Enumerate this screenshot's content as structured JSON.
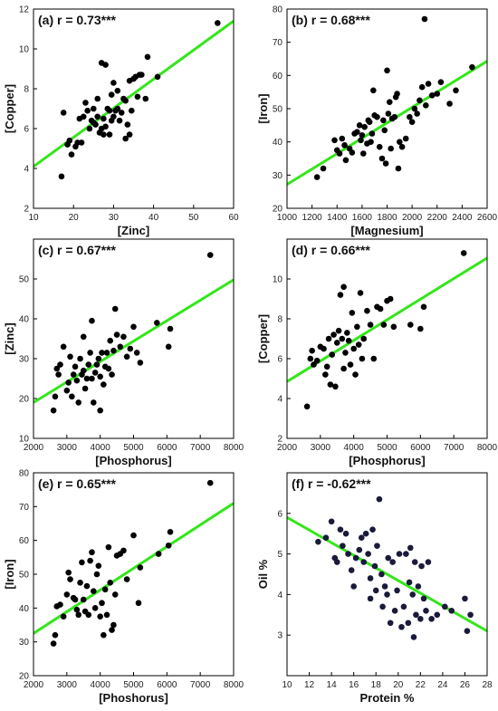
{
  "colors": {
    "fit_line": "#33e61a",
    "point": "#000000",
    "point_f": "#1a1a3a"
  },
  "chart_data": [
    {
      "type": "scatter",
      "title": "(a) r = 0.73***",
      "xlabel": "[Zinc]",
      "ylabel": "[Copper]",
      "xlim": [
        10,
        60
      ],
      "ylim": [
        2,
        12
      ],
      "xticks": [
        10,
        20,
        30,
        40,
        50,
        60
      ],
      "yticks": [
        2,
        4,
        6,
        8,
        10,
        12
      ],
      "fit": [
        [
          10,
          4.1
        ],
        [
          60,
          11.4
        ]
      ],
      "points": [
        [
          17,
          3.6
        ],
        [
          17.5,
          6.8
        ],
        [
          18.5,
          5.2
        ],
        [
          19,
          5.4
        ],
        [
          19.5,
          4.7
        ],
        [
          20.5,
          5.1
        ],
        [
          21,
          5.3
        ],
        [
          21.5,
          6.5
        ],
        [
          22,
          5.3
        ],
        [
          22.5,
          6.6
        ],
        [
          23,
          7.3
        ],
        [
          23.5,
          6.9
        ],
        [
          24,
          6.0
        ],
        [
          24.5,
          6.4
        ],
        [
          25,
          6.3
        ],
        [
          25,
          7.0
        ],
        [
          25.5,
          6.2
        ],
        [
          26,
          6.6
        ],
        [
          26,
          7.5
        ],
        [
          26.5,
          5.8
        ],
        [
          27,
          6.0
        ],
        [
          27,
          9.3
        ],
        [
          27.5,
          5.7
        ],
        [
          27.5,
          6.5
        ],
        [
          28,
          6.1
        ],
        [
          28,
          9.2
        ],
        [
          28.5,
          7.0
        ],
        [
          29,
          5.7
        ],
        [
          29,
          6.9
        ],
        [
          29.5,
          6.4
        ],
        [
          29.5,
          7.7
        ],
        [
          30,
          6.6
        ],
        [
          30,
          8.3
        ],
        [
          30.5,
          6.9
        ],
        [
          31,
          7.0
        ],
        [
          31,
          7.9
        ],
        [
          31.5,
          6.4
        ],
        [
          32,
          6.8
        ],
        [
          32.5,
          7.5
        ],
        [
          33,
          5.5
        ],
        [
          33,
          7.4
        ],
        [
          33.5,
          6.2
        ],
        [
          34,
          5.7
        ],
        [
          34,
          8.4
        ],
        [
          34.5,
          6.9
        ],
        [
          35,
          8.5
        ],
        [
          35.5,
          8.6
        ],
        [
          36,
          7.6
        ],
        [
          36.5,
          8.7
        ],
        [
          37,
          8.7
        ],
        [
          38,
          7.5
        ],
        [
          38.5,
          9.6
        ],
        [
          41,
          8.6
        ],
        [
          56,
          11.3
        ]
      ]
    },
    {
      "type": "scatter",
      "title": "(b) r = 0.68***",
      "xlabel": "[Magnesium]",
      "ylabel": "[Iron]",
      "xlim": [
        1000,
        2600
      ],
      "ylim": [
        20,
        80
      ],
      "xticks": [
        1000,
        1200,
        1400,
        1600,
        1800,
        2000,
        2200,
        2400,
        2600
      ],
      "yticks": [
        20,
        30,
        40,
        50,
        60,
        70,
        80
      ],
      "fit": [
        [
          1000,
          27.2
        ],
        [
          2600,
          64.3
        ]
      ],
      "points": [
        [
          1240,
          29.4
        ],
        [
          1290,
          32.0
        ],
        [
          1380,
          40.5
        ],
        [
          1400,
          37.5
        ],
        [
          1420,
          36.5
        ],
        [
          1440,
          41.0
        ],
        [
          1460,
          39.0
        ],
        [
          1470,
          34.5
        ],
        [
          1500,
          38.0
        ],
        [
          1520,
          36.8
        ],
        [
          1540,
          42.5
        ],
        [
          1560,
          43.0
        ],
        [
          1580,
          45.0
        ],
        [
          1590,
          40.5
        ],
        [
          1600,
          42.0
        ],
        [
          1610,
          36.5
        ],
        [
          1620,
          44.5
        ],
        [
          1640,
          39.5
        ],
        [
          1650,
          46.5
        ],
        [
          1660,
          46.0
        ],
        [
          1670,
          40.0
        ],
        [
          1680,
          42.5
        ],
        [
          1690,
          55.5
        ],
        [
          1700,
          48.0
        ],
        [
          1720,
          47.5
        ],
        [
          1740,
          38.5
        ],
        [
          1760,
          35.0
        ],
        [
          1770,
          46.5
        ],
        [
          1780,
          43.5
        ],
        [
          1790,
          33.5
        ],
        [
          1800,
          61.5
        ],
        [
          1810,
          48.5
        ],
        [
          1820,
          52.0
        ],
        [
          1830,
          38.0
        ],
        [
          1840,
          47.0
        ],
        [
          1860,
          47.5
        ],
        [
          1870,
          53.5
        ],
        [
          1880,
          54.5
        ],
        [
          1890,
          32.0
        ],
        [
          1900,
          40.0
        ],
        [
          1920,
          38.5
        ],
        [
          1950,
          41.0
        ],
        [
          1980,
          47.5
        ],
        [
          2000,
          46.0
        ],
        [
          2020,
          50.0
        ],
        [
          2040,
          48.5
        ],
        [
          2060,
          52.5
        ],
        [
          2080,
          56.5
        ],
        [
          2100,
          77.0
        ],
        [
          2110,
          51.0
        ],
        [
          2130,
          57.5
        ],
        [
          2160,
          54.0
        ],
        [
          2200,
          54.5
        ],
        [
          2230,
          58.0
        ],
        [
          2300,
          51.5
        ],
        [
          2350,
          55.5
        ],
        [
          2480,
          62.5
        ]
      ]
    },
    {
      "type": "scatter",
      "title": "(c) r = 0.67***",
      "xlabel": "[Phosphorus]",
      "ylabel": "[Zinc]",
      "xlim": [
        2000,
        8000
      ],
      "ylim": [
        10,
        60
      ],
      "xticks": [
        2000,
        3000,
        4000,
        5000,
        6000,
        7000,
        8000
      ],
      "yticks": [
        10,
        20,
        30,
        40,
        50
      ],
      "fit": [
        [
          2000,
          19.0
        ],
        [
          8000,
          49.8
        ]
      ],
      "points": [
        [
          2600,
          17.0
        ],
        [
          2650,
          20.5
        ],
        [
          2700,
          27.5
        ],
        [
          2750,
          26.0
        ],
        [
          2800,
          28.5
        ],
        [
          2900,
          33.0
        ],
        [
          3000,
          22.0
        ],
        [
          3050,
          24.0
        ],
        [
          3100,
          30.5
        ],
        [
          3150,
          20.5
        ],
        [
          3200,
          26.0
        ],
        [
          3250,
          28.0
        ],
        [
          3300,
          24.5
        ],
        [
          3350,
          19.0
        ],
        [
          3400,
          30.0
        ],
        [
          3450,
          26.0
        ],
        [
          3500,
          35.5
        ],
        [
          3500,
          27.0
        ],
        [
          3550,
          22.5
        ],
        [
          3600,
          25.0
        ],
        [
          3650,
          28.5
        ],
        [
          3700,
          31.5
        ],
        [
          3750,
          39.5
        ],
        [
          3750,
          25.0
        ],
        [
          3800,
          19.0
        ],
        [
          3850,
          26.5
        ],
        [
          3900,
          28.5
        ],
        [
          3950,
          30.0
        ],
        [
          4000,
          17.0
        ],
        [
          4000,
          25.5
        ],
        [
          4050,
          31.5
        ],
        [
          4100,
          23.5
        ],
        [
          4150,
          28.0
        ],
        [
          4200,
          31.5
        ],
        [
          4250,
          27.5
        ],
        [
          4300,
          34.5
        ],
        [
          4350,
          26.0
        ],
        [
          4400,
          32.0
        ],
        [
          4450,
          42.5
        ],
        [
          4500,
          36.0
        ],
        [
          4600,
          33.0
        ],
        [
          4700,
          35.5
        ],
        [
          4800,
          30.5
        ],
        [
          4900,
          32.5
        ],
        [
          5000,
          38.0
        ],
        [
          5100,
          31.5
        ],
        [
          5200,
          29.0
        ],
        [
          5700,
          39.0
        ],
        [
          6050,
          33.0
        ],
        [
          6100,
          37.5
        ],
        [
          7300,
          56.0
        ]
      ]
    },
    {
      "type": "scatter",
      "title": "(d) r = 0.66***",
      "xlabel": "[Phosphorus]",
      "ylabel": "[Copper]",
      "xlim": [
        2000,
        8000
      ],
      "ylim": [
        2,
        12
      ],
      "xticks": [
        2000,
        3000,
        4000,
        5000,
        6000,
        7000,
        8000
      ],
      "yticks": [
        2,
        4,
        6,
        8,
        10
      ],
      "fit": [
        [
          2000,
          4.85
        ],
        [
          8000,
          11.05
        ]
      ],
      "points": [
        [
          2600,
          3.6
        ],
        [
          2700,
          6.0
        ],
        [
          2750,
          6.4
        ],
        [
          2800,
          5.7
        ],
        [
          2900,
          5.9
        ],
        [
          3000,
          6.6
        ],
        [
          3100,
          6.5
        ],
        [
          3150,
          5.2
        ],
        [
          3200,
          5.6
        ],
        [
          3250,
          7.0
        ],
        [
          3300,
          4.7
        ],
        [
          3350,
          6.2
        ],
        [
          3400,
          7.2
        ],
        [
          3450,
          4.6
        ],
        [
          3500,
          6.8
        ],
        [
          3550,
          7.4
        ],
        [
          3600,
          9.2
        ],
        [
          3650,
          7.0
        ],
        [
          3700,
          9.6
        ],
        [
          3700,
          5.5
        ],
        [
          3750,
          6.3
        ],
        [
          3800,
          7.3
        ],
        [
          3850,
          6.9
        ],
        [
          3900,
          5.7
        ],
        [
          3950,
          8.3
        ],
        [
          4000,
          6.5
        ],
        [
          4050,
          5.2
        ],
        [
          4100,
          7.6
        ],
        [
          4150,
          6.7
        ],
        [
          4200,
          9.3
        ],
        [
          4250,
          6.0
        ],
        [
          4300,
          7.0
        ],
        [
          4400,
          8.4
        ],
        [
          4500,
          7.7
        ],
        [
          4600,
          6.0
        ],
        [
          4700,
          8.6
        ],
        [
          4800,
          8.5
        ],
        [
          4900,
          7.7
        ],
        [
          5000,
          8.9
        ],
        [
          5100,
          9.0
        ],
        [
          5200,
          7.6
        ],
        [
          5700,
          7.7
        ],
        [
          6000,
          7.5
        ],
        [
          6100,
          8.6
        ],
        [
          7300,
          11.3
        ]
      ]
    },
    {
      "type": "scatter",
      "title": "(e) r = 0.65***",
      "xlabel": "[Phoshorus]",
      "ylabel": "[Iron]",
      "xlim": [
        2000,
        8000
      ],
      "ylim": [
        20,
        80
      ],
      "xticks": [
        2000,
        3000,
        4000,
        5000,
        6000,
        7000,
        8000
      ],
      "yticks": [
        20,
        30,
        40,
        50,
        60,
        70,
        80
      ],
      "fit": [
        [
          2000,
          32.5
        ],
        [
          8000,
          71.0
        ]
      ],
      "points": [
        [
          2600,
          29.5
        ],
        [
          2650,
          32.0
        ],
        [
          2700,
          40.5
        ],
        [
          2800,
          41.0
        ],
        [
          2900,
          37.5
        ],
        [
          3000,
          44.0
        ],
        [
          3050,
          50.5
        ],
        [
          3100,
          48.5
        ],
        [
          3200,
          43.0
        ],
        [
          3250,
          42.5
        ],
        [
          3300,
          39.5
        ],
        [
          3350,
          38.0
        ],
        [
          3400,
          47.5
        ],
        [
          3450,
          53.5
        ],
        [
          3500,
          42.5
        ],
        [
          3550,
          39.0
        ],
        [
          3600,
          46.5
        ],
        [
          3650,
          38.0
        ],
        [
          3700,
          54.0
        ],
        [
          3750,
          56.5
        ],
        [
          3800,
          45.0
        ],
        [
          3850,
          40.0
        ],
        [
          3900,
          50.0
        ],
        [
          3950,
          52.5
        ],
        [
          4000,
          37.5
        ],
        [
          4050,
          41.5
        ],
        [
          4100,
          32.0
        ],
        [
          4150,
          45.5
        ],
        [
          4200,
          38.0
        ],
        [
          4250,
          58.0
        ],
        [
          4300,
          47.5
        ],
        [
          4350,
          33.5
        ],
        [
          4400,
          35.0
        ],
        [
          4450,
          44.0
        ],
        [
          4500,
          55.5
        ],
        [
          4600,
          56.0
        ],
        [
          4700,
          57.0
        ],
        [
          4800,
          48.5
        ],
        [
          5000,
          61.5
        ],
        [
          5150,
          41.5
        ],
        [
          5200,
          52.0
        ],
        [
          5750,
          56.0
        ],
        [
          6050,
          58.5
        ],
        [
          6100,
          62.5
        ],
        [
          7300,
          77.0
        ]
      ]
    },
    {
      "type": "scatter",
      "title": "(f) r = -0.62***",
      "xlabel": "Protein %",
      "ylabel": "Oil %",
      "xlim": [
        10,
        28
      ],
      "ylim": [
        2,
        7
      ],
      "xticks": [
        10,
        12,
        14,
        16,
        18,
        20,
        22,
        24,
        26,
        28
      ],
      "yticks": [
        3,
        4,
        5,
        6
      ],
      "fit": [
        [
          10,
          5.9
        ],
        [
          28,
          3.1
        ]
      ],
      "points": [
        [
          12.8,
          5.3
        ],
        [
          13.5,
          5.4
        ],
        [
          14.0,
          5.8
        ],
        [
          14.3,
          4.9
        ],
        [
          14.5,
          4.8
        ],
        [
          14.8,
          5.6
        ],
        [
          15.0,
          5.2
        ],
        [
          15.3,
          5.5
        ],
        [
          15.5,
          5.0
        ],
        [
          15.8,
          4.6
        ],
        [
          16.0,
          4.2
        ],
        [
          16.2,
          4.9
        ],
        [
          16.5,
          5.1
        ],
        [
          16.7,
          5.4
        ],
        [
          16.9,
          4.8
        ],
        [
          17.1,
          5.5
        ],
        [
          17.3,
          5.0
        ],
        [
          17.5,
          3.9
        ],
        [
          17.5,
          4.4
        ],
        [
          17.7,
          5.6
        ],
        [
          17.9,
          4.7
        ],
        [
          18.0,
          4.1
        ],
        [
          18.1,
          5.2
        ],
        [
          18.3,
          6.35
        ],
        [
          18.5,
          4.5
        ],
        [
          18.6,
          3.7
        ],
        [
          18.8,
          4.2
        ],
        [
          19.0,
          4.0
        ],
        [
          19.1,
          4.9
        ],
        [
          19.3,
          3.3
        ],
        [
          19.5,
          4.8
        ],
        [
          19.7,
          3.6
        ],
        [
          19.9,
          4.1
        ],
        [
          20.1,
          5.0
        ],
        [
          20.3,
          3.2
        ],
        [
          20.5,
          3.7
        ],
        [
          20.7,
          5.0
        ],
        [
          20.9,
          3.3
        ],
        [
          21.0,
          4.3
        ],
        [
          21.1,
          5.15
        ],
        [
          21.3,
          4.0
        ],
        [
          21.5,
          4.8
        ],
        [
          21.6,
          3.5
        ],
        [
          21.8,
          4.2
        ],
        [
          22.0,
          3.4
        ],
        [
          22.1,
          4.7
        ],
        [
          22.3,
          3.9
        ],
        [
          22.5,
          3.6
        ],
        [
          22.7,
          4.8
        ],
        [
          23.0,
          3.4
        ],
        [
          23.5,
          3.5
        ],
        [
          24.2,
          3.7
        ],
        [
          24.8,
          3.6
        ],
        [
          26.0,
          3.9
        ],
        [
          26.2,
          3.1
        ],
        [
          26.5,
          3.5
        ],
        [
          21.4,
          2.95
        ]
      ]
    }
  ]
}
